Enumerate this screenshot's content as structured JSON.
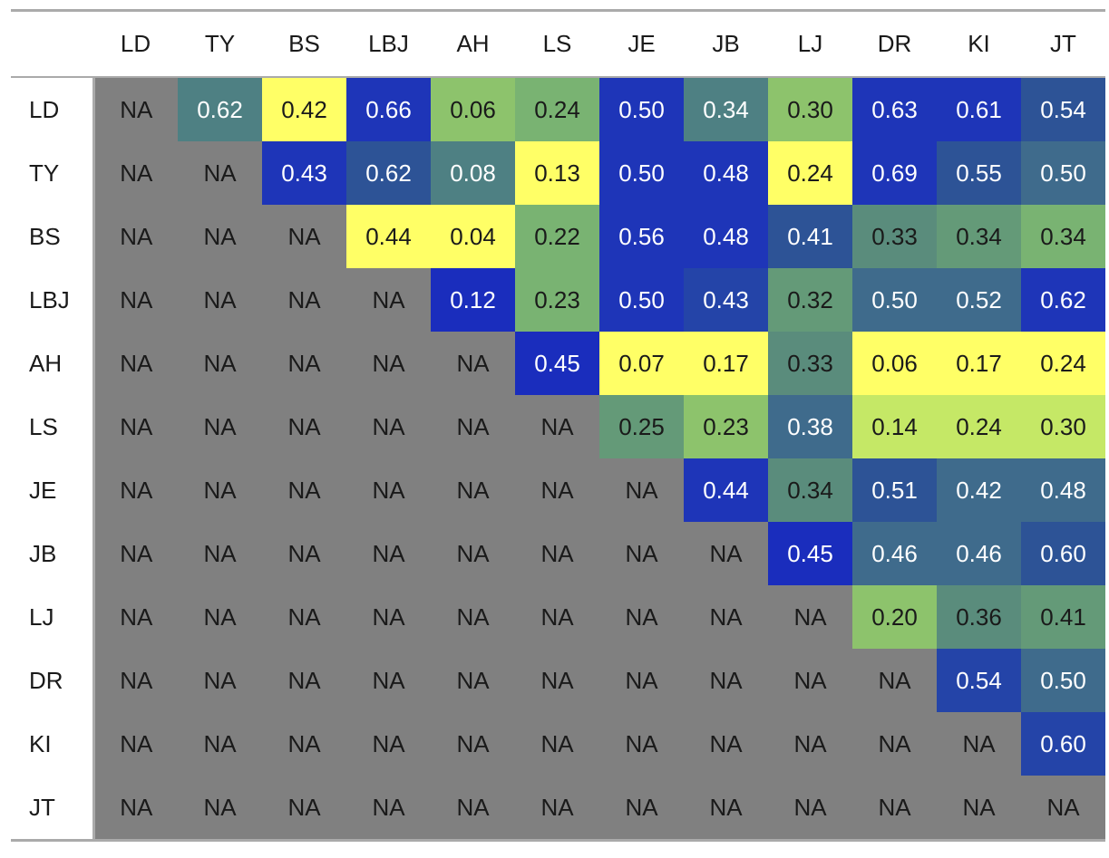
{
  "chart_data": {
    "type": "heatmap",
    "title": "",
    "labels": [
      "LD",
      "TY",
      "BS",
      "LBJ",
      "AH",
      "LS",
      "JE",
      "JB",
      "LJ",
      "DR",
      "KI",
      "JT"
    ],
    "na_label": "NA",
    "na_color": "#808080",
    "colors": {
      "yellow": "#ffff66",
      "yellow_green": "#c5e866",
      "light_green": "#8dc36c",
      "green": "#79b372",
      "gray_green": "#649a78",
      "teal_green": "#5a8c7c",
      "teal": "#4e8083",
      "steel_teal": "#3f6b8c",
      "steel_blue": "#2d5396",
      "royal_blue": "#2444a8",
      "blue": "#1e35b8",
      "deep_blue": "#1a2dbd"
    },
    "rows": [
      {
        "label": "LD",
        "cells": [
          {
            "value": null
          },
          {
            "value": "0.62",
            "color": "teal"
          },
          {
            "value": "0.42",
            "color": "yellow"
          },
          {
            "value": "0.66",
            "color": "blue"
          },
          {
            "value": "0.06",
            "color": "light_green"
          },
          {
            "value": "0.24",
            "color": "green"
          },
          {
            "value": "0.50",
            "color": "blue"
          },
          {
            "value": "0.34",
            "color": "teal"
          },
          {
            "value": "0.30",
            "color": "light_green"
          },
          {
            "value": "0.63",
            "color": "blue"
          },
          {
            "value": "0.61",
            "color": "blue"
          },
          {
            "value": "0.54",
            "color": "steel_blue"
          }
        ]
      },
      {
        "label": "TY",
        "cells": [
          {
            "value": null
          },
          {
            "value": null
          },
          {
            "value": "0.43",
            "color": "blue"
          },
          {
            "value": "0.62",
            "color": "steel_blue"
          },
          {
            "value": "0.08",
            "color": "teal"
          },
          {
            "value": "0.13",
            "color": "yellow"
          },
          {
            "value": "0.50",
            "color": "blue"
          },
          {
            "value": "0.48",
            "color": "blue"
          },
          {
            "value": "0.24",
            "color": "yellow"
          },
          {
            "value": "0.69",
            "color": "blue"
          },
          {
            "value": "0.55",
            "color": "steel_blue"
          },
          {
            "value": "0.50",
            "color": "steel_teal"
          }
        ]
      },
      {
        "label": "BS",
        "cells": [
          {
            "value": null
          },
          {
            "value": null
          },
          {
            "value": null
          },
          {
            "value": "0.44",
            "color": "yellow"
          },
          {
            "value": "0.04",
            "color": "yellow"
          },
          {
            "value": "0.22",
            "color": "green"
          },
          {
            "value": "0.56",
            "color": "blue"
          },
          {
            "value": "0.48",
            "color": "blue"
          },
          {
            "value": "0.41",
            "color": "steel_blue"
          },
          {
            "value": "0.33",
            "color": "teal_green"
          },
          {
            "value": "0.34",
            "color": "gray_green"
          },
          {
            "value": "0.34",
            "color": "green"
          }
        ]
      },
      {
        "label": "LBJ",
        "cells": [
          {
            "value": null
          },
          {
            "value": null
          },
          {
            "value": null
          },
          {
            "value": null
          },
          {
            "value": "0.12",
            "color": "deep_blue"
          },
          {
            "value": "0.23",
            "color": "green"
          },
          {
            "value": "0.50",
            "color": "blue"
          },
          {
            "value": "0.43",
            "color": "royal_blue"
          },
          {
            "value": "0.32",
            "color": "gray_green"
          },
          {
            "value": "0.50",
            "color": "steel_teal"
          },
          {
            "value": "0.52",
            "color": "steel_teal"
          },
          {
            "value": "0.62",
            "color": "blue"
          }
        ]
      },
      {
        "label": "AH",
        "cells": [
          {
            "value": null
          },
          {
            "value": null
          },
          {
            "value": null
          },
          {
            "value": null
          },
          {
            "value": null
          },
          {
            "value": "0.45",
            "color": "deep_blue"
          },
          {
            "value": "0.07",
            "color": "yellow"
          },
          {
            "value": "0.17",
            "color": "yellow"
          },
          {
            "value": "0.33",
            "color": "teal_green"
          },
          {
            "value": "0.06",
            "color": "yellow"
          },
          {
            "value": "0.17",
            "color": "yellow"
          },
          {
            "value": "0.24",
            "color": "yellow"
          }
        ]
      },
      {
        "label": "LS",
        "cells": [
          {
            "value": null
          },
          {
            "value": null
          },
          {
            "value": null
          },
          {
            "value": null
          },
          {
            "value": null
          },
          {
            "value": null
          },
          {
            "value": "0.25",
            "color": "gray_green"
          },
          {
            "value": "0.23",
            "color": "light_green"
          },
          {
            "value": "0.38",
            "color": "steel_teal"
          },
          {
            "value": "0.14",
            "color": "yellow_green"
          },
          {
            "value": "0.24",
            "color": "yellow_green"
          },
          {
            "value": "0.30",
            "color": "yellow_green"
          }
        ]
      },
      {
        "label": "JE",
        "cells": [
          {
            "value": null
          },
          {
            "value": null
          },
          {
            "value": null
          },
          {
            "value": null
          },
          {
            "value": null
          },
          {
            "value": null
          },
          {
            "value": null
          },
          {
            "value": "0.44",
            "color": "blue"
          },
          {
            "value": "0.34",
            "color": "teal_green"
          },
          {
            "value": "0.51",
            "color": "steel_blue"
          },
          {
            "value": "0.42",
            "color": "steel_teal"
          },
          {
            "value": "0.48",
            "color": "steel_teal"
          }
        ]
      },
      {
        "label": "JB",
        "cells": [
          {
            "value": null
          },
          {
            "value": null
          },
          {
            "value": null
          },
          {
            "value": null
          },
          {
            "value": null
          },
          {
            "value": null
          },
          {
            "value": null
          },
          {
            "value": null
          },
          {
            "value": "0.45",
            "color": "deep_blue"
          },
          {
            "value": "0.46",
            "color": "steel_teal"
          },
          {
            "value": "0.46",
            "color": "steel_teal"
          },
          {
            "value": "0.60",
            "color": "steel_blue"
          }
        ]
      },
      {
        "label": "LJ",
        "cells": [
          {
            "value": null
          },
          {
            "value": null
          },
          {
            "value": null
          },
          {
            "value": null
          },
          {
            "value": null
          },
          {
            "value": null
          },
          {
            "value": null
          },
          {
            "value": null
          },
          {
            "value": null
          },
          {
            "value": "0.20",
            "color": "light_green"
          },
          {
            "value": "0.36",
            "color": "teal_green"
          },
          {
            "value": "0.41",
            "color": "gray_green"
          }
        ]
      },
      {
        "label": "DR",
        "cells": [
          {
            "value": null
          },
          {
            "value": null
          },
          {
            "value": null
          },
          {
            "value": null
          },
          {
            "value": null
          },
          {
            "value": null
          },
          {
            "value": null
          },
          {
            "value": null
          },
          {
            "value": null
          },
          {
            "value": null
          },
          {
            "value": "0.54",
            "color": "royal_blue"
          },
          {
            "value": "0.50",
            "color": "steel_teal"
          }
        ]
      },
      {
        "label": "KI",
        "cells": [
          {
            "value": null
          },
          {
            "value": null
          },
          {
            "value": null
          },
          {
            "value": null
          },
          {
            "value": null
          },
          {
            "value": null
          },
          {
            "value": null
          },
          {
            "value": null
          },
          {
            "value": null
          },
          {
            "value": null
          },
          {
            "value": null
          },
          {
            "value": "0.60",
            "color": "royal_blue"
          }
        ]
      },
      {
        "label": "JT",
        "cells": [
          {
            "value": null
          },
          {
            "value": null
          },
          {
            "value": null
          },
          {
            "value": null
          },
          {
            "value": null
          },
          {
            "value": null
          },
          {
            "value": null
          },
          {
            "value": null
          },
          {
            "value": null
          },
          {
            "value": null
          },
          {
            "value": null
          },
          {
            "value": null
          }
        ]
      }
    ]
  }
}
